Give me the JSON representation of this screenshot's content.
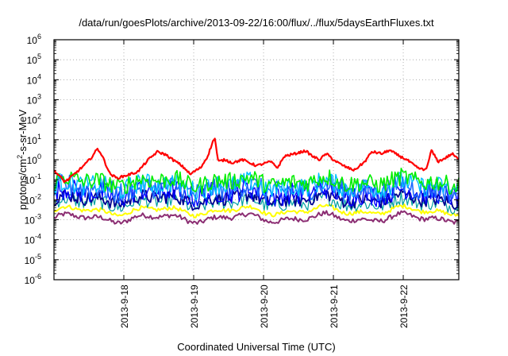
{
  "chart_data": {
    "type": "line",
    "title": "/data/run/goesPlots/archive/2013-09-22/16:00/flux/../flux/5daysEarthFluxes.txt",
    "xlabel": "Coordinated Universal Time (UTC)",
    "ylabel": {
      "pre": "protons/cm",
      "sup": "2",
      "post": "-s-sr-MeV"
    },
    "yscale": "log",
    "ylim": [
      1e-06,
      1000000.0
    ],
    "y_ticks": [
      {
        "value": 1e-06,
        "mant": "10",
        "exp": "-6"
      },
      {
        "value": 1e-05,
        "mant": "10",
        "exp": "-5"
      },
      {
        "value": 0.0001,
        "mant": "10",
        "exp": "-4"
      },
      {
        "value": 0.001,
        "mant": "10",
        "exp": "-3"
      },
      {
        "value": 0.01,
        "mant": "10",
        "exp": "-2"
      },
      {
        "value": 0.1,
        "mant": "10",
        "exp": "-1"
      },
      {
        "value": 1,
        "mant": "10",
        "exp": "0"
      },
      {
        "value": 10,
        "mant": "10",
        "exp": "1"
      },
      {
        "value": 100,
        "mant": "10",
        "exp": "2"
      },
      {
        "value": 1000,
        "mant": "10",
        "exp": "3"
      },
      {
        "value": 10000,
        "mant": "10",
        "exp": "4"
      },
      {
        "value": 100000,
        "mant": "10",
        "exp": "5"
      },
      {
        "value": 1000000,
        "mant": "10",
        "exp": "6"
      }
    ],
    "xlim_days": [
      0,
      5.795
    ],
    "x_ticks": [
      {
        "value": 1.0,
        "label": "2013-9-18"
      },
      {
        "value": 2.0,
        "label": "2013-9-19"
      },
      {
        "value": 3.0,
        "label": "2013-9-20"
      },
      {
        "value": 4.0,
        "label": "2013-9-21"
      },
      {
        "value": 5.0,
        "label": "2013-9-22"
      }
    ],
    "grid": true,
    "legend": "none",
    "series": [
      {
        "color": "#ff0000",
        "width": 2.2,
        "noise": 0.06,
        "x": [
          0,
          0.08,
          0.15,
          0.2,
          0.3,
          0.45,
          0.55,
          0.62,
          0.66,
          0.72,
          0.8,
          0.9,
          1.0,
          1.2,
          1.35,
          1.48,
          1.6,
          1.7,
          1.8,
          1.9,
          1.95,
          2.0,
          2.1,
          2.2,
          2.3,
          2.35,
          2.45,
          2.55,
          2.7,
          2.9,
          3.1,
          3.2,
          3.3,
          3.45,
          3.6,
          3.7,
          3.8,
          3.9,
          4.0,
          4.1,
          4.2,
          4.3,
          4.45,
          4.55,
          4.7,
          4.8,
          4.95,
          5.05,
          5.2,
          5.3,
          5.35,
          5.4,
          5.5,
          5.6,
          5.7,
          5.795
        ],
        "y": [
          0.3,
          0.15,
          0.08,
          0.1,
          0.2,
          0.6,
          1.5,
          3.5,
          2.5,
          0.9,
          0.2,
          0.12,
          0.15,
          0.25,
          1.0,
          2.5,
          1.8,
          1.0,
          0.6,
          0.3,
          0.18,
          0.25,
          0.4,
          1.5,
          14.0,
          0.8,
          1.0,
          0.7,
          1.0,
          0.5,
          0.8,
          0.4,
          1.5,
          2.0,
          2.8,
          1.5,
          1.0,
          2.0,
          1.0,
          0.6,
          0.4,
          0.3,
          0.8,
          2.5,
          2.0,
          3.0,
          1.5,
          1.0,
          0.4,
          0.3,
          0.5,
          3.0,
          0.8,
          1.2,
          2.0,
          1.0
        ]
      },
      {
        "color": "#00ee00",
        "width": 1.6,
        "noise": 0.45,
        "base": 0.08
      },
      {
        "color": "#00bfff",
        "width": 1.4,
        "noise": 0.5,
        "base": 0.05
      },
      {
        "color": "#1e6bff",
        "width": 1.6,
        "noise": 0.55,
        "base": 0.035
      },
      {
        "color": "#0000ff",
        "width": 1.4,
        "noise": 0.55,
        "base": 0.022
      },
      {
        "color": "#000090",
        "width": 1.8,
        "noise": 0.35,
        "base": 0.011
      },
      {
        "color": "#00a0a0",
        "width": 1.2,
        "noise": 0.35,
        "base": 0.007
      },
      {
        "color": "#ffff00",
        "width": 2.0,
        "noise": 0.1,
        "base": 0.0028
      },
      {
        "color": "#8b2d72",
        "width": 2.0,
        "noise": 0.12,
        "base": 0.0012
      }
    ]
  }
}
